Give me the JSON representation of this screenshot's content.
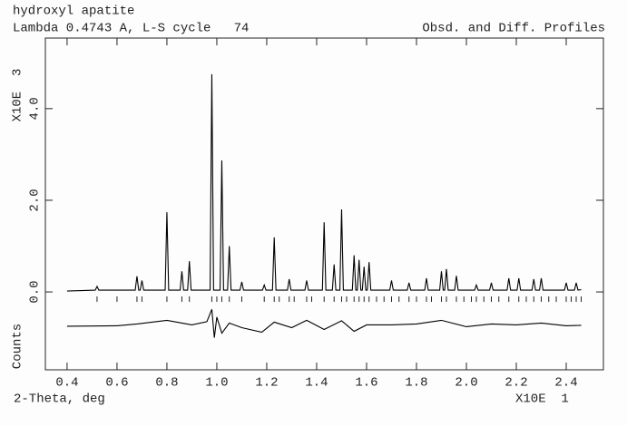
{
  "chart_data": {
    "type": "profile",
    "title": "hydroxyl apatite",
    "subtitle": "Lambda 0.4743 A, L-S cycle   74",
    "annotation": "Obsd. and Diff. Profiles",
    "y_label": "X10E  3",
    "y_label_lower": "Counts",
    "x_label": "2-Theta, deg",
    "x_scale_label": "X10E  1",
    "xlim": [
      0.313,
      2.549
    ],
    "ylim": [
      -1.7,
      5.54
    ],
    "xticks": [
      0.4,
      0.6,
      0.8,
      {
        "value": 1,
        "label": "1.0"
      },
      1.2,
      1.4,
      1.6,
      1.8,
      {
        "value": 2,
        "label": "2.0"
      },
      2.2,
      2.4
    ],
    "yticks": [
      {
        "value": 0,
        "label": "0.0"
      },
      {
        "value": 2,
        "label": "2.0"
      },
      {
        "value": 4,
        "label": "4.0"
      }
    ],
    "series": [
      {
        "name": "Obsd.",
        "color": "#000000",
        "x": [
          0.4,
          0.513,
          0.52,
          0.527,
          0.673,
          0.68,
          0.687,
          0.693,
          0.7,
          0.707,
          0.793,
          0.8,
          0.807,
          0.853,
          0.86,
          0.867,
          0.883,
          0.89,
          0.897,
          0.973,
          0.98,
          0.987,
          1.013,
          1.02,
          1.027,
          1.043,
          1.05,
          1.057,
          1.093,
          1.1,
          1.107,
          1.183,
          1.19,
          1.197,
          1.223,
          1.23,
          1.237,
          1.283,
          1.29,
          1.297,
          1.353,
          1.36,
          1.367,
          1.423,
          1.43,
          1.437,
          1.463,
          1.47,
          1.477,
          1.493,
          1.5,
          1.507,
          1.543,
          1.55,
          1.557,
          1.563,
          1.57,
          1.577,
          1.583,
          1.59,
          1.597,
          1.603,
          1.61,
          1.617,
          1.693,
          1.7,
          1.707,
          1.763,
          1.77,
          1.777,
          1.833,
          1.84,
          1.847,
          1.893,
          1.9,
          1.907,
          1.913,
          1.92,
          1.927,
          1.953,
          1.96,
          1.967,
          2.033,
          2.04,
          2.047,
          2.093,
          2.1,
          2.107,
          2.163,
          2.17,
          2.177,
          2.203,
          2.21,
          2.217,
          2.263,
          2.27,
          2.277,
          2.293,
          2.3,
          2.307,
          2.393,
          2.4,
          2.407,
          2.433,
          2.44,
          2.447,
          2.46
        ],
        "values": [
          0.02,
          0.04,
          0.12,
          0.04,
          0.04,
          0.34,
          0.04,
          0.04,
          0.25,
          0.04,
          0.04,
          1.74,
          0.04,
          0.04,
          0.45,
          0.04,
          0.04,
          0.67,
          0.04,
          0.04,
          4.75,
          0.04,
          0.04,
          2.87,
          0.04,
          0.04,
          1.0,
          0.04,
          0.04,
          0.22,
          0.04,
          0.04,
          0.15,
          0.04,
          0.04,
          1.19,
          0.04,
          0.04,
          0.28,
          0.04,
          0.04,
          0.25,
          0.04,
          0.04,
          1.52,
          0.04,
          0.04,
          0.6,
          0.04,
          0.04,
          1.8,
          0.04,
          0.04,
          0.8,
          0.04,
          0.04,
          0.7,
          0.04,
          0.04,
          0.55,
          0.04,
          0.04,
          0.65,
          0.04,
          0.04,
          0.25,
          0.04,
          0.04,
          0.2,
          0.04,
          0.04,
          0.3,
          0.04,
          0.04,
          0.45,
          0.04,
          0.04,
          0.5,
          0.04,
          0.04,
          0.35,
          0.04,
          0.04,
          0.15,
          0.04,
          0.04,
          0.2,
          0.04,
          0.04,
          0.3,
          0.04,
          0.04,
          0.3,
          0.04,
          0.04,
          0.28,
          0.04,
          0.04,
          0.3,
          0.04,
          0.04,
          0.2,
          0.04,
          0.04,
          0.2,
          0.04,
          0.05
        ]
      },
      {
        "name": "Diff.",
        "color": "#000000",
        "x": [
          0.4,
          0.6,
          0.68,
          0.8,
          0.9,
          0.96,
          0.98,
          0.99,
          1.0,
          1.02,
          1.05,
          1.1,
          1.18,
          1.23,
          1.3,
          1.36,
          1.43,
          1.5,
          1.55,
          1.6,
          1.7,
          1.8,
          1.9,
          2.0,
          2.1,
          2.2,
          2.3,
          2.4,
          2.46
        ],
        "values": [
          -0.75,
          -0.74,
          -0.7,
          -0.62,
          -0.72,
          -0.65,
          -0.38,
          -1.0,
          -0.55,
          -0.9,
          -0.68,
          -0.78,
          -0.88,
          -0.66,
          -0.78,
          -0.62,
          -0.82,
          -0.63,
          -0.86,
          -0.72,
          -0.72,
          -0.7,
          -0.62,
          -0.76,
          -0.7,
          -0.72,
          -0.68,
          -0.74,
          -0.73
        ]
      }
    ],
    "reflections": [
      0.52,
      0.6,
      0.68,
      0.7,
      0.8,
      0.86,
      0.89,
      0.98,
      1.0,
      1.02,
      1.05,
      1.1,
      1.19,
      1.23,
      1.25,
      1.29,
      1.31,
      1.36,
      1.38,
      1.43,
      1.47,
      1.5,
      1.52,
      1.55,
      1.57,
      1.59,
      1.61,
      1.64,
      1.67,
      1.7,
      1.73,
      1.77,
      1.8,
      1.84,
      1.86,
      1.9,
      1.92,
      1.96,
      1.99,
      2.02,
      2.04,
      2.07,
      2.1,
      2.13,
      2.17,
      2.21,
      2.24,
      2.27,
      2.3,
      2.33,
      2.36,
      2.4,
      2.42,
      2.44,
      2.46
    ]
  }
}
